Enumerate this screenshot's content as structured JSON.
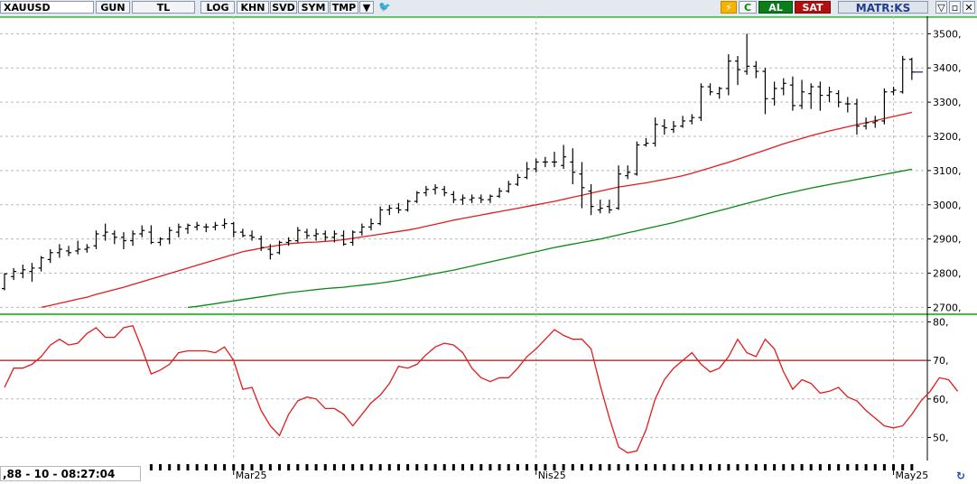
{
  "toolbar": {
    "symbol": "XAUUSD",
    "buttons": [
      "GUN",
      "TL",
      "LOG",
      "KHN",
      "SVD",
      "SYM",
      "TMP"
    ],
    "dropdown_icon": "triangle-down-icon",
    "twitter_icon": "twitter-bird-icon",
    "bolt_icon": "lightning-icon",
    "c_label": "C",
    "al_label": "AL",
    "sat_label": "SAT",
    "matriks_label": "MATR:KS",
    "window_icons": [
      "menu-down-icon",
      "minimize-icon",
      "close-icon"
    ]
  },
  "status": {
    "timestamp": ",88 - 10 - 08:27:04"
  },
  "colors": {
    "price_bars": "#000000",
    "ma_short": "#e31b1b",
    "ma_long": "#0a8a14",
    "rsi_line": "#e31b1b",
    "rsi_level": "#a01818",
    "panel_border": "#3cc43c",
    "grid": "#b9b9b9",
    "last_price": "#1c2fa0"
  },
  "chart_data": [
    {
      "type": "ohlc",
      "ylim": [
        2680,
        3530
      ],
      "yticks": [
        2700,
        2800,
        2900,
        3000,
        3100,
        3200,
        3300,
        3400,
        3500
      ],
      "ytick_labels": [
        "2700,",
        "2800,",
        "2900,",
        "3000,",
        "3100,",
        "3200,",
        "3300,",
        "3400,",
        "3500,"
      ],
      "last_value": 3388,
      "bars": [
        [
          2755,
          2800,
          2750,
          2798
        ],
        [
          2790,
          2815,
          2780,
          2805
        ],
        [
          2800,
          2825,
          2785,
          2810
        ],
        [
          2805,
          2830,
          2775,
          2815
        ],
        [
          2815,
          2850,
          2805,
          2845
        ],
        [
          2840,
          2870,
          2830,
          2860
        ],
        [
          2860,
          2885,
          2845,
          2870
        ],
        [
          2865,
          2880,
          2850,
          2860
        ],
        [
          2865,
          2895,
          2855,
          2870
        ],
        [
          2870,
          2885,
          2860,
          2875
        ],
        [
          2880,
          2925,
          2870,
          2915
        ],
        [
          2910,
          2945,
          2895,
          2920
        ],
        [
          2915,
          2925,
          2885,
          2905
        ],
        [
          2905,
          2920,
          2870,
          2895
        ],
        [
          2895,
          2925,
          2880,
          2915
        ],
        [
          2915,
          2940,
          2905,
          2925
        ],
        [
          2920,
          2940,
          2885,
          2890
        ],
        [
          2890,
          2905,
          2880,
          2900
        ],
        [
          2900,
          2935,
          2885,
          2925
        ],
        [
          2920,
          2945,
          2905,
          2935
        ],
        [
          2930,
          2945,
          2915,
          2940
        ],
        [
          2935,
          2950,
          2925,
          2940
        ],
        [
          2935,
          2945,
          2920,
          2935
        ],
        [
          2935,
          2950,
          2925,
          2940
        ],
        [
          2940,
          2960,
          2930,
          2945
        ],
        [
          2945,
          2950,
          2905,
          2920
        ],
        [
          2920,
          2930,
          2905,
          2910
        ],
        [
          2910,
          2925,
          2895,
          2905
        ],
        [
          2900,
          2910,
          2865,
          2875
        ],
        [
          2870,
          2885,
          2840,
          2855
        ],
        [
          2860,
          2895,
          2855,
          2890
        ],
        [
          2890,
          2905,
          2880,
          2895
        ],
        [
          2895,
          2935,
          2890,
          2925
        ],
        [
          2920,
          2930,
          2900,
          2910
        ],
        [
          2910,
          2930,
          2895,
          2915
        ],
        [
          2915,
          2925,
          2895,
          2905
        ],
        [
          2905,
          2925,
          2890,
          2915
        ],
        [
          2910,
          2925,
          2880,
          2885
        ],
        [
          2890,
          2925,
          2880,
          2920
        ],
        [
          2920,
          2945,
          2910,
          2935
        ],
        [
          2935,
          2960,
          2925,
          2945
        ],
        [
          2945,
          2995,
          2940,
          2985
        ],
        [
          2985,
          3000,
          2970,
          2990
        ],
        [
          2990,
          3005,
          2975,
          2985
        ],
        [
          2985,
          3015,
          2980,
          3010
        ],
        [
          3010,
          3040,
          3005,
          3035
        ],
        [
          3035,
          3055,
          3025,
          3045
        ],
        [
          3045,
          3060,
          3030,
          3050
        ],
        [
          3045,
          3055,
          3025,
          3035
        ],
        [
          3030,
          3040,
          3005,
          3015
        ],
        [
          3015,
          3030,
          3000,
          3020
        ],
        [
          3015,
          3030,
          3005,
          3020
        ],
        [
          3020,
          3030,
          3005,
          3015
        ],
        [
          3015,
          3030,
          3005,
          3025
        ],
        [
          3025,
          3050,
          3020,
          3040
        ],
        [
          3040,
          3070,
          3035,
          3060
        ],
        [
          3060,
          3090,
          3055,
          3080
        ],
        [
          3080,
          3125,
          3075,
          3105
        ],
        [
          3105,
          3135,
          3095,
          3125
        ],
        [
          3125,
          3140,
          3110,
          3125
        ],
        [
          3125,
          3155,
          3110,
          3125
        ],
        [
          3115,
          3175,
          3105,
          3140
        ],
        [
          3125,
          3165,
          3060,
          3095
        ],
        [
          3090,
          3125,
          2990,
          3050
        ],
        [
          3040,
          3060,
          2970,
          2995
        ],
        [
          2985,
          3015,
          2975,
          2990
        ],
        [
          2995,
          3015,
          2975,
          2985
        ],
        [
          2990,
          3115,
          2985,
          3090
        ],
        [
          3085,
          3115,
          3075,
          3095
        ],
        [
          3090,
          3185,
          3085,
          3175
        ],
        [
          3175,
          3195,
          3170,
          3180
        ],
        [
          3180,
          3255,
          3170,
          3235
        ],
        [
          3230,
          3250,
          3205,
          3225
        ],
        [
          3220,
          3245,
          3210,
          3230
        ],
        [
          3230,
          3260,
          3225,
          3245
        ],
        [
          3245,
          3265,
          3235,
          3255
        ],
        [
          3255,
          3355,
          3245,
          3345
        ],
        [
          3345,
          3355,
          3320,
          3330
        ],
        [
          3325,
          3345,
          3310,
          3340
        ],
        [
          3340,
          3440,
          3320,
          3420
        ],
        [
          3420,
          3435,
          3350,
          3395
        ],
        [
          3390,
          3500,
          3380,
          3405
        ],
        [
          3405,
          3420,
          3370,
          3390
        ],
        [
          3390,
          3400,
          3265,
          3310
        ],
        [
          3310,
          3360,
          3290,
          3340
        ],
        [
          3340,
          3370,
          3320,
          3355
        ],
        [
          3350,
          3375,
          3275,
          3290
        ],
        [
          3290,
          3365,
          3280,
          3330
        ],
        [
          3325,
          3355,
          3280,
          3345
        ],
        [
          3345,
          3360,
          3275,
          3320
        ],
        [
          3320,
          3345,
          3300,
          3330
        ],
        [
          3325,
          3335,
          3285,
          3300
        ],
        [
          3295,
          3315,
          3270,
          3295
        ],
        [
          3295,
          3310,
          3205,
          3230
        ],
        [
          3230,
          3255,
          3220,
          3240
        ],
        [
          3240,
          3260,
          3225,
          3245
        ],
        [
          3245,
          3340,
          3235,
          3330
        ],
        [
          3330,
          3345,
          3320,
          3335
        ],
        [
          3330,
          3435,
          3325,
          3425
        ],
        [
          3425,
          3430,
          3365,
          3388
        ]
      ],
      "series": [
        {
          "line": "ma_short",
          "values": [
            2700,
            2706,
            2712,
            2718,
            2724,
            2730,
            2738,
            2745,
            2752,
            2759,
            2767,
            2775,
            2783,
            2791,
            2799,
            2807,
            2815,
            2823,
            2831,
            2839,
            2847,
            2855,
            2863,
            2868,
            2873,
            2878,
            2882,
            2886,
            2888,
            2890,
            2891,
            2893,
            2895,
            2898,
            2902,
            2906,
            2910,
            2914,
            2918,
            2922,
            2926,
            2931,
            2937,
            2943,
            2949,
            2955,
            2960,
            2965,
            2970,
            2975,
            2980,
            2985,
            2990,
            2995,
            3000,
            3005,
            3010,
            3016,
            3022,
            3028,
            3034,
            3040,
            3046,
            3052,
            3056,
            3060,
            3064,
            3069,
            3074,
            3079,
            3085,
            3092,
            3100,
            3108,
            3116,
            3124,
            3133,
            3142,
            3151,
            3160,
            3169,
            3178,
            3186,
            3194,
            3202,
            3209,
            3216,
            3222,
            3228,
            3234,
            3240,
            3246,
            3252,
            3258,
            3264,
            3270
          ]
        },
        {
          "line": "ma_long",
          "values": [
            2700,
            2703,
            2707,
            2711,
            2715,
            2719,
            2723,
            2727,
            2731,
            2735,
            2739,
            2743,
            2746,
            2749,
            2752,
            2755,
            2757,
            2759,
            2762,
            2765,
            2768,
            2771,
            2775,
            2779,
            2784,
            2789,
            2794,
            2799,
            2804,
            2809,
            2815,
            2821,
            2827,
            2833,
            2839,
            2845,
            2851,
            2857,
            2863,
            2869,
            2875,
            2880,
            2885,
            2890,
            2895,
            2900,
            2906,
            2912,
            2918,
            2924,
            2930,
            2936,
            2942,
            2948,
            2955,
            2962,
            2969,
            2976,
            2983,
            2990,
            2997,
            3004,
            3011,
            3018,
            3025,
            3031,
            3037,
            3043,
            3049,
            3054,
            3059,
            3064,
            3069,
            3074,
            3079,
            3084,
            3089,
            3094,
            3099,
            3104
          ]
        }
      ]
    },
    {
      "type": "line",
      "ylim": [
        44,
        82
      ],
      "yticks": [
        50,
        60,
        70,
        80
      ],
      "ytick_labels": [
        "50,",
        "60,",
        "70,",
        "80,"
      ],
      "level": 70,
      "series": [
        {
          "line": "rsi",
          "values": [
            63,
            68,
            68,
            69,
            71,
            74,
            75.5,
            74,
            74.5,
            77,
            78.5,
            76,
            76,
            78.5,
            79,
            73,
            66.5,
            67.5,
            69,
            72,
            72.5,
            72.5,
            72.5,
            72,
            73.5,
            70,
            62.5,
            63,
            57,
            53,
            50.5,
            56,
            59.5,
            60.5,
            60,
            57.5,
            57.5,
            56,
            53,
            56,
            59,
            61,
            64,
            68.5,
            68,
            69,
            71.5,
            73.5,
            74.5,
            74,
            72,
            68,
            65.5,
            64.5,
            65.5,
            65.5,
            68,
            71,
            73,
            75.5,
            78,
            76.5,
            75.5,
            75.5,
            73,
            63.5,
            55,
            47.5,
            46,
            46.5,
            52,
            60,
            65,
            68,
            70,
            72,
            69,
            67,
            68,
            71,
            75.5,
            72,
            71,
            75.5,
            73,
            67,
            62.5,
            65,
            64,
            61.5,
            62,
            63,
            60.5,
            59.5,
            57,
            55,
            53,
            52.5,
            53,
            56,
            59.5,
            62,
            65.5,
            65,
            62
          ]
        }
      ]
    }
  ],
  "x_axis": {
    "labels": [
      {
        "text": "Mar25",
        "index": 25
      },
      {
        "text": "Nis25",
        "index": 58
      },
      {
        "text": "May25",
        "index": 97
      }
    ]
  }
}
